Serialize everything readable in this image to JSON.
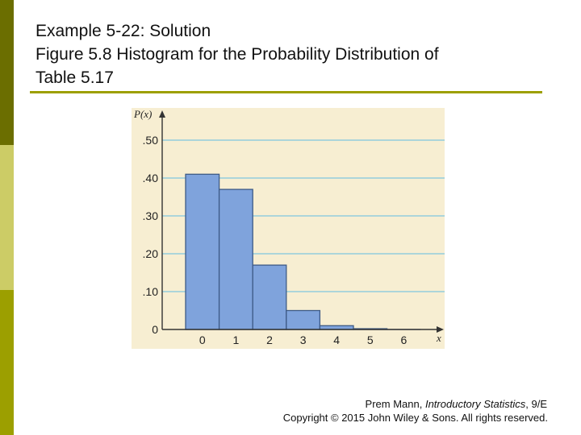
{
  "slide": {
    "title_line_1": "Example 5-22: Solution",
    "title_line_2": "Figure 5.8 Histogram for the Probability Distribution of",
    "title_line_3": "Table 5.17",
    "credit_author": "Prem Mann,",
    "credit_book": "Introductory Statistics",
    "credit_edition": ", 9/E",
    "credit_copyright": "Copyright © 2015 John Wiley & Sons. All rights reserved."
  },
  "colors": {
    "accent_olive": "#9c9f00",
    "chart_background": "#f7eed2",
    "bar_fill": "#7fa3dc",
    "gridline": "#7fc6de"
  },
  "chart_data": {
    "type": "bar",
    "categories": [
      "0",
      "1",
      "2",
      "3",
      "4",
      "5",
      "6"
    ],
    "values": [
      0.41,
      0.37,
      0.17,
      0.05,
      0.01,
      0.002,
      0.0
    ],
    "xlabel": "x",
    "ylabel": "P(x)",
    "ylim": [
      0,
      0.55
    ],
    "yticks": [
      0,
      0.1,
      0.2,
      0.3,
      0.4,
      0.5
    ],
    "ytick_labels": [
      "0",
      ".10",
      ".20",
      ".30",
      ".40",
      ".50"
    ],
    "grid": true
  }
}
